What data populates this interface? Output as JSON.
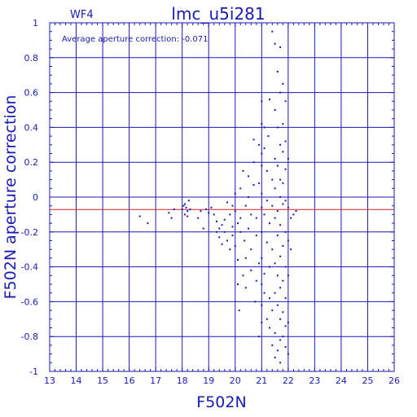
{
  "chart_data": {
    "type": "scatter",
    "title": "lmc_u5i281",
    "chip_label": "WF4",
    "annotation": "Average aperture correction: -0.071",
    "xlabel": "F502N",
    "ylabel": "F502N aperture correction",
    "xlim": [
      13,
      26
    ],
    "ylim": [
      -1,
      1
    ],
    "x_ticks": [
      "13",
      "14",
      "15",
      "16",
      "17",
      "18",
      "19",
      "20",
      "21",
      "22",
      "23",
      "24",
      "25",
      "26"
    ],
    "y_ticks": [
      "-1",
      "-0.8",
      "-0.6",
      "-0.4",
      "-0.2",
      "0",
      "0.2",
      "0.4",
      "0.6",
      "0.8",
      "1"
    ],
    "grid": true,
    "zero_line": 0,
    "mean_line": -0.071,
    "colors": {
      "axis": "#1a1ab0",
      "points": "#1a1ab0",
      "mean_line": "#cc2222"
    },
    "series": [
      {
        "points": [
          [
            16.4,
            -0.11
          ],
          [
            16.7,
            -0.15
          ],
          [
            17.5,
            -0.09
          ],
          [
            17.6,
            -0.12
          ],
          [
            17.7,
            -0.07
          ],
          [
            18.0,
            -0.07
          ],
          [
            18.05,
            -0.05
          ],
          [
            18.1,
            -0.1
          ],
          [
            18.15,
            -0.06
          ],
          [
            18.2,
            -0.08
          ],
          [
            18.25,
            -0.02
          ],
          [
            18.3,
            -0.07
          ],
          [
            18.1,
            -0.04
          ],
          [
            18.2,
            -0.11
          ],
          [
            18.6,
            -0.12
          ],
          [
            18.7,
            -0.08
          ],
          [
            18.8,
            -0.18
          ],
          [
            18.9,
            -0.07
          ],
          [
            19.0,
            -0.09
          ],
          [
            19.1,
            -0.06
          ],
          [
            19.2,
            -0.1
          ],
          [
            19.3,
            -0.14
          ],
          [
            19.3,
            -0.2
          ],
          [
            19.4,
            -0.18
          ],
          [
            19.4,
            -0.23
          ],
          [
            19.5,
            -0.16
          ],
          [
            19.5,
            -0.27
          ],
          [
            19.6,
            -0.2
          ],
          [
            19.6,
            -0.13
          ],
          [
            19.7,
            -0.03
          ],
          [
            19.7,
            -0.25
          ],
          [
            19.8,
            -0.1
          ],
          [
            19.8,
            -0.3
          ],
          [
            19.9,
            -0.05
          ],
          [
            19.9,
            -0.17
          ],
          [
            19.9,
            -0.22
          ],
          [
            20.0,
            -0.08
          ],
          [
            20.0,
            -0.28
          ],
          [
            20.0,
            0.02
          ],
          [
            20.1,
            -0.15
          ],
          [
            20.1,
            -0.36
          ],
          [
            20.1,
            -0.5
          ],
          [
            20.15,
            -0.65
          ],
          [
            20.2,
            -0.12
          ],
          [
            20.2,
            0.05
          ],
          [
            20.2,
            -0.2
          ],
          [
            20.3,
            -0.45
          ],
          [
            20.3,
            0.15
          ],
          [
            20.35,
            -0.25
          ],
          [
            20.4,
            -0.05
          ],
          [
            20.4,
            -0.35
          ],
          [
            20.4,
            -0.52
          ],
          [
            20.5,
            0.12
          ],
          [
            20.5,
            0.0
          ],
          [
            20.5,
            -0.18
          ],
          [
            20.6,
            -0.1
          ],
          [
            20.6,
            -0.42
          ],
          [
            20.6,
            -0.3
          ],
          [
            20.7,
            0.33
          ],
          [
            20.7,
            0.2
          ],
          [
            20.7,
            0.07
          ],
          [
            20.75,
            -0.6
          ],
          [
            20.8,
            -0.22
          ],
          [
            20.8,
            -0.48
          ],
          [
            20.8,
            -0.12
          ],
          [
            20.9,
            0.3
          ],
          [
            20.9,
            0.08
          ],
          [
            20.9,
            -0.38
          ],
          [
            20.9,
            -0.8
          ],
          [
            21.0,
            0.55
          ],
          [
            21.0,
            0.42
          ],
          [
            21.0,
            0.25
          ],
          [
            21.0,
            0.18
          ],
          [
            21.0,
            0.02
          ],
          [
            21.0,
            -0.06
          ],
          [
            21.0,
            -0.2
          ],
          [
            21.0,
            -0.35
          ],
          [
            21.0,
            -0.5
          ],
          [
            21.0,
            -0.62
          ],
          [
            21.0,
            -0.72
          ],
          [
            21.1,
            0.4
          ],
          [
            21.1,
            0.28
          ],
          [
            21.1,
            -0.1
          ],
          [
            21.1,
            -0.44
          ],
          [
            21.1,
            -0.55
          ],
          [
            21.2,
            0.15
          ],
          [
            21.2,
            -0.02
          ],
          [
            21.2,
            -0.26
          ],
          [
            21.2,
            -0.7
          ],
          [
            21.25,
            0.35
          ],
          [
            21.3,
            0.56
          ],
          [
            21.3,
            -0.15
          ],
          [
            21.3,
            -0.4
          ],
          [
            21.3,
            -0.58
          ],
          [
            21.3,
            -0.75
          ],
          [
            21.4,
            0.95
          ],
          [
            21.4,
            0.1
          ],
          [
            21.4,
            -0.05
          ],
          [
            21.4,
            -0.3
          ],
          [
            21.4,
            -0.65
          ],
          [
            21.4,
            -0.85
          ],
          [
            21.5,
            0.88
          ],
          [
            21.5,
            0.5
          ],
          [
            21.5,
            0.22
          ],
          [
            21.5,
            0.05
          ],
          [
            21.5,
            -0.12
          ],
          [
            21.5,
            -0.38
          ],
          [
            21.5,
            -0.55
          ],
          [
            21.5,
            -0.78
          ],
          [
            21.5,
            -0.92
          ],
          [
            21.6,
            0.72
          ],
          [
            21.6,
            0.4
          ],
          [
            21.6,
            0.18
          ],
          [
            21.6,
            -0.08
          ],
          [
            21.6,
            -0.22
          ],
          [
            21.6,
            -0.45
          ],
          [
            21.6,
            -0.62
          ],
          [
            21.6,
            -0.88
          ],
          [
            21.7,
            0.86
          ],
          [
            21.7,
            0.6
          ],
          [
            21.7,
            0.3
          ],
          [
            21.7,
            0.1
          ],
          [
            21.7,
            0.0
          ],
          [
            21.7,
            -0.16
          ],
          [
            21.7,
            -0.34
          ],
          [
            21.7,
            -0.52
          ],
          [
            21.7,
            -0.7
          ],
          [
            21.7,
            -0.82
          ],
          [
            21.7,
            -0.95
          ],
          [
            21.8,
            0.65
          ],
          [
            21.8,
            0.42
          ],
          [
            21.8,
            0.26
          ],
          [
            21.8,
            0.08
          ],
          [
            21.8,
            -0.04
          ],
          [
            21.8,
            -0.28
          ],
          [
            21.8,
            -0.48
          ],
          [
            21.8,
            -0.66
          ],
          [
            21.8,
            -0.8
          ],
          [
            21.9,
            0.55
          ],
          [
            21.9,
            0.32
          ],
          [
            21.9,
            0.16
          ],
          [
            21.9,
            -0.02
          ],
          [
            21.9,
            -0.2
          ],
          [
            21.9,
            -0.4
          ],
          [
            21.9,
            -0.58
          ],
          [
            21.9,
            -0.74
          ],
          [
            21.9,
            -0.86
          ],
          [
            22.0,
            0.22
          ],
          [
            22.0,
            -0.06
          ],
          [
            22.0,
            -0.25
          ],
          [
            22.0,
            -0.45
          ],
          [
            22.0,
            -0.72
          ],
          [
            22.0,
            -0.9
          ],
          [
            22.1,
            -0.12
          ],
          [
            22.1,
            -0.3
          ],
          [
            22.2,
            -0.1
          ],
          [
            22.3,
            -0.08
          ]
        ]
      }
    ]
  }
}
